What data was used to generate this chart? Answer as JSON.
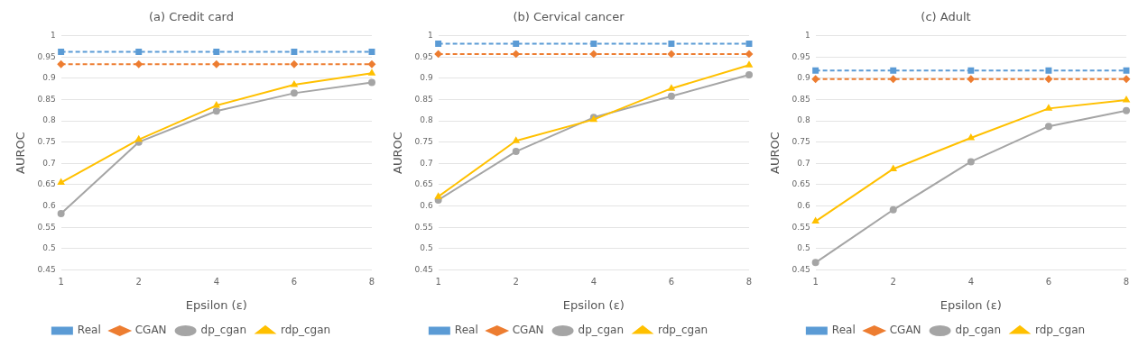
{
  "chart_data": [
    {
      "type": "line",
      "title": "(a) Credit card",
      "xlabel": "Epsilon (ε)",
      "ylabel": "AUROC",
      "categories": [
        "1",
        "2",
        "4",
        "6",
        "8"
      ],
      "ylim": [
        0.45,
        1
      ],
      "yticks": [
        0.45,
        0.5,
        0.55,
        0.6,
        0.65,
        0.7,
        0.75,
        0.8,
        0.85,
        0.9,
        0.95,
        1
      ],
      "grid": "y",
      "legend": "bottom",
      "series": [
        {
          "name": "Real",
          "color": "#5b9bd5",
          "marker": "square",
          "line_style": "dashed",
          "values": [
            0.962,
            0.962,
            0.962,
            0.962,
            0.962
          ]
        },
        {
          "name": "CGAN",
          "color": "#ed7d31",
          "marker": "diamond",
          "line_style": "dashed",
          "values": [
            0.933,
            0.933,
            0.933,
            0.933,
            0.933
          ]
        },
        {
          "name": "dp_cgan",
          "color": "#a5a5a5",
          "marker": "circle",
          "line_style": "solid",
          "values": [
            0.582,
            0.75,
            0.823,
            0.865,
            0.89
          ]
        },
        {
          "name": "rdp_cgan",
          "color": "#ffc000",
          "marker": "triangle",
          "line_style": "solid",
          "values": [
            0.655,
            0.756,
            0.836,
            0.885,
            0.912
          ]
        }
      ]
    },
    {
      "type": "line",
      "title": "(b) Cervical cancer",
      "xlabel": "Epsilon (ε)",
      "ylabel": "AUROC",
      "categories": [
        "1",
        "2",
        "4",
        "6",
        "8"
      ],
      "ylim": [
        0.45,
        1
      ],
      "yticks": [
        0.45,
        0.5,
        0.55,
        0.6,
        0.65,
        0.7,
        0.75,
        0.8,
        0.85,
        0.9,
        0.95,
        1
      ],
      "grid": "y",
      "legend": "bottom",
      "series": [
        {
          "name": "Real",
          "color": "#5b9bd5",
          "marker": "square",
          "line_style": "dashed",
          "values": [
            0.981,
            0.981,
            0.981,
            0.981,
            0.981
          ]
        },
        {
          "name": "CGAN",
          "color": "#ed7d31",
          "marker": "diamond",
          "line_style": "dashed",
          "values": [
            0.957,
            0.957,
            0.957,
            0.957,
            0.957
          ]
        },
        {
          "name": "dp_cgan",
          "color": "#a5a5a5",
          "marker": "circle",
          "line_style": "solid",
          "values": [
            0.614,
            0.728,
            0.808,
            0.858,
            0.908
          ]
        },
        {
          "name": "rdp_cgan",
          "color": "#ffc000",
          "marker": "triangle",
          "line_style": "solid",
          "values": [
            0.622,
            0.753,
            0.803,
            0.876,
            0.931
          ]
        }
      ]
    },
    {
      "type": "line",
      "title": "(c) Adult",
      "xlabel": "Epsilon (ε)",
      "ylabel": "AUROC",
      "categories": [
        "1",
        "2",
        "4",
        "6",
        "8"
      ],
      "ylim": [
        0.45,
        1
      ],
      "yticks": [
        0.45,
        0.5,
        0.55,
        0.6,
        0.65,
        0.7,
        0.75,
        0.8,
        0.85,
        0.9,
        0.95,
        1
      ],
      "grid": "y",
      "legend": "bottom",
      "series": [
        {
          "name": "Real",
          "color": "#5b9bd5",
          "marker": "square",
          "line_style": "dashed",
          "values": [
            0.918,
            0.918,
            0.918,
            0.918,
            0.918
          ]
        },
        {
          "name": "CGAN",
          "color": "#ed7d31",
          "marker": "diamond",
          "line_style": "dashed",
          "values": [
            0.898,
            0.898,
            0.898,
            0.898,
            0.898
          ]
        },
        {
          "name": "dp_cgan",
          "color": "#a5a5a5",
          "marker": "circle",
          "line_style": "solid",
          "values": [
            0.467,
            0.591,
            0.704,
            0.787,
            0.824
          ]
        },
        {
          "name": "rdp_cgan",
          "color": "#ffc000",
          "marker": "triangle",
          "line_style": "solid",
          "values": [
            0.564,
            0.687,
            0.76,
            0.829,
            0.849
          ]
        }
      ]
    }
  ]
}
